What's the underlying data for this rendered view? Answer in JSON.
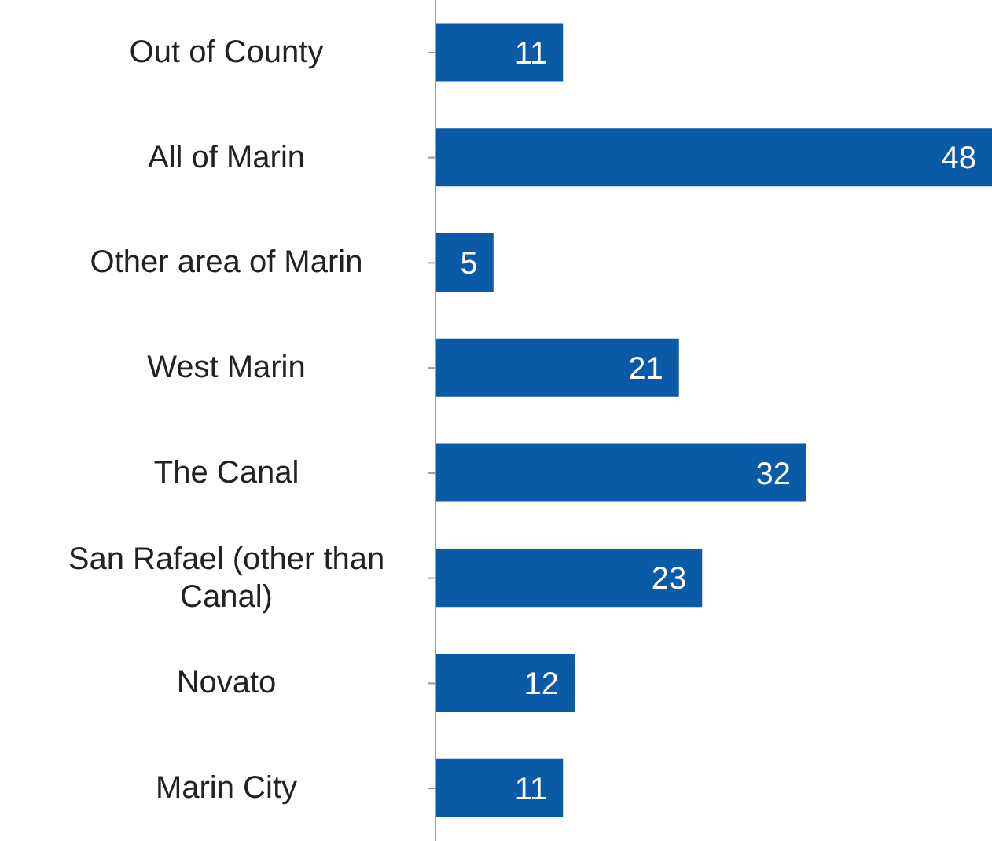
{
  "chart_data": {
    "type": "bar",
    "orientation": "horizontal",
    "categories": [
      "Out of County",
      "All of Marin",
      "Other area of Marin",
      "West Marin",
      "The Canal",
      "San Rafael (other than Canal)",
      "Novato",
      "Marin City"
    ],
    "values": [
      11,
      48,
      5,
      21,
      32,
      23,
      12,
      11
    ],
    "color": "#0b5aa8",
    "data_labels": true,
    "grid": false
  }
}
